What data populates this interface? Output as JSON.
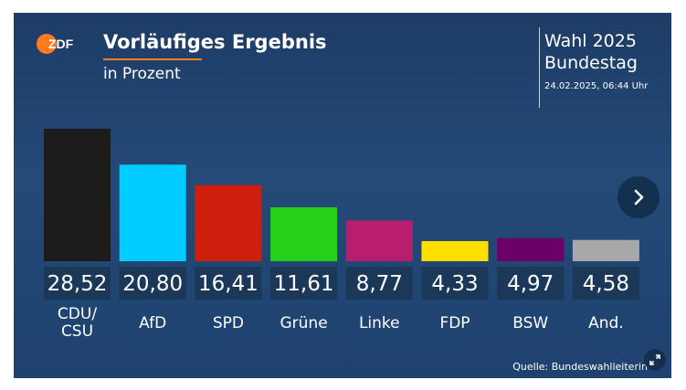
{
  "header": {
    "logo_text": "ZDF",
    "title": "Vorläufiges Ergebnis",
    "subtitle": "in Prozent",
    "event_line1": "Wahl 2025",
    "event_line2": "Bundestag",
    "timestamp": "24.02.2025, 06:44 Uhr"
  },
  "source": "Quelle: Bundeswahlleiterin",
  "icons": {
    "next": "chevron-right-icon",
    "expand": "expand-icon",
    "logo": "zdf-logo"
  },
  "colors": {
    "accent": "#ff7c1e",
    "value_box": "#1b3859",
    "background": "#214775"
  },
  "chart_data": {
    "type": "bar",
    "title": "Vorläufiges Ergebnis",
    "subtitle": "in Prozent",
    "categories": [
      "CDU/CSU",
      "AfD",
      "SPD",
      "Grüne",
      "Linke",
      "FDP",
      "BSW",
      "And."
    ],
    "category_lines": [
      [
        "CDU/",
        "CSU"
      ],
      [
        "AfD"
      ],
      [
        "SPD"
      ],
      [
        "Grüne"
      ],
      [
        "Linke"
      ],
      [
        "FDP"
      ],
      [
        "BSW"
      ],
      [
        "And."
      ]
    ],
    "values": [
      28.52,
      20.8,
      16.41,
      11.61,
      8.77,
      4.33,
      4.97,
      4.58
    ],
    "value_labels": [
      "28,52",
      "20,80",
      "16,41",
      "11,61",
      "8,77",
      "4,33",
      "4,97",
      "4,58"
    ],
    "colors": [
      "#1c1c1c",
      "#00ccff",
      "#d01e0c",
      "#27d01a",
      "#b91d6e",
      "#ffdf00",
      "#6c0069",
      "#a8a8a8"
    ],
    "ylim": [
      0,
      28.52
    ],
    "grid": false,
    "legend": "none"
  }
}
